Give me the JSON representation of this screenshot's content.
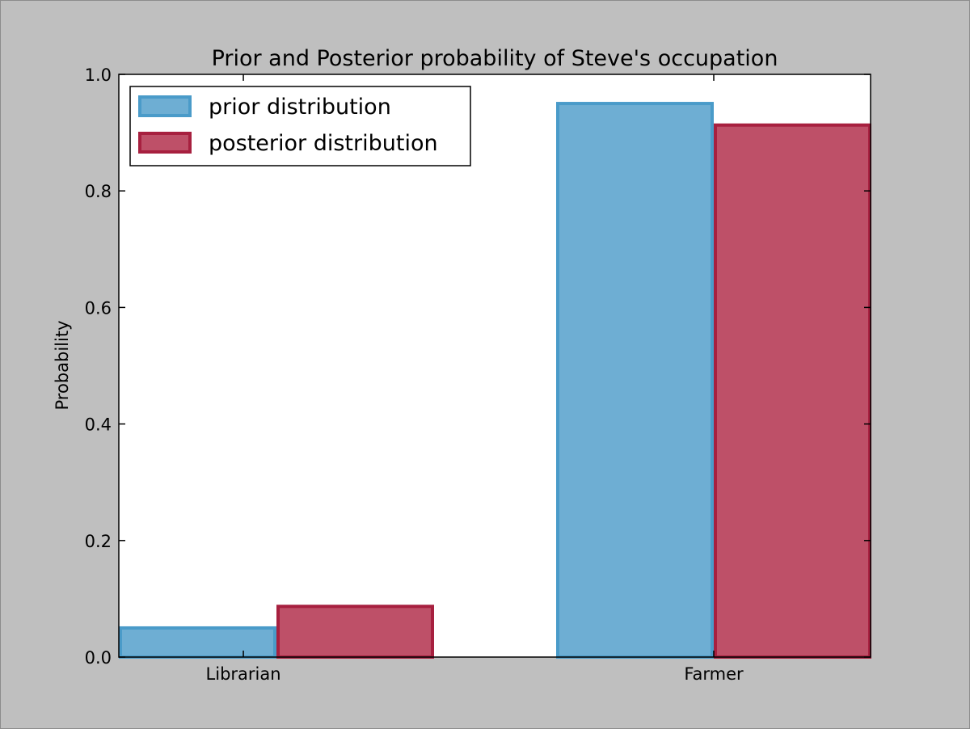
{
  "chart_data": {
    "type": "bar",
    "title": "Prior and Posterior probability of Steve's occupation",
    "xlabel": "",
    "ylabel": "Probability",
    "categories": [
      "Librarian",
      "Farmer"
    ],
    "series": [
      {
        "name": "prior distribution",
        "values": [
          0.05,
          0.95
        ]
      },
      {
        "name": "posterior distribution",
        "values": [
          0.087,
          0.913
        ]
      }
    ],
    "ylim": [
      0,
      1.0
    ],
    "yticks": [
      "0.0",
      "0.2",
      "0.4",
      "0.6",
      "0.8",
      "1.0"
    ],
    "grid": false,
    "legend_position": "top-left"
  },
  "colors": {
    "prior_fill": "#6eaed3",
    "prior_edge": "#4a9bc9",
    "posterior_fill": "#be5068",
    "posterior_edge": "#a7203f",
    "background": "#bfbfbf",
    "plot_background": "#ffffff"
  }
}
